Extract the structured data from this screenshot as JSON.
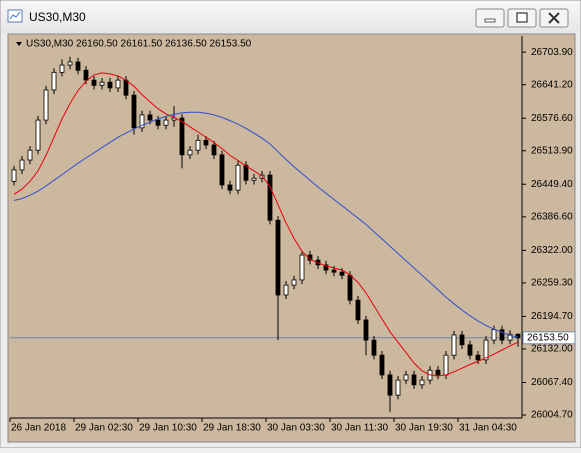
{
  "window": {
    "title": "US30,M30"
  },
  "chart_data": {
    "type": "candlestick",
    "info": "US30,M30 26160.50 26161.50 26136.50 26153.50",
    "open": [
      26455,
      26477,
      26496,
      26515,
      26573,
      26631,
      26665,
      26679,
      26685,
      26669,
      26650,
      26640,
      26646,
      26635,
      26650,
      26621,
      26558,
      26583,
      26573,
      26563,
      26573,
      26577,
      26506,
      26515,
      26534,
      26525,
      26506,
      26448,
      26438,
      26486,
      26457,
      26461,
      26467,
      26380,
      26236,
      26255,
      26265,
      26313,
      26303,
      26294,
      26284,
      26280,
      26274,
      26226,
      26188,
      26149,
      26120,
      26082,
      26043,
      26072,
      26082,
      26063,
      26072,
      26091,
      26082,
      26120,
      26159,
      26140,
      26120,
      26111,
      26149,
      26169,
      26149,
      26160.5
    ],
    "high": [
      26485,
      26504,
      26523,
      26581,
      26639,
      26673,
      26690,
      26695,
      26693,
      26677,
      26658,
      26654,
      26654,
      26658,
      26658,
      26629,
      26591,
      26591,
      26581,
      26581,
      26600,
      26585,
      26523,
      26545,
      26542,
      26533,
      26514,
      26456,
      26494,
      26494,
      26469,
      26475,
      26475,
      26388,
      26263,
      26273,
      26321,
      26321,
      26311,
      26302,
      26292,
      26288,
      26282,
      26234,
      26196,
      26157,
      26128,
      26090,
      26080,
      26090,
      26090,
      26080,
      26099,
      26099,
      26128,
      26167,
      26167,
      26148,
      26128,
      26157,
      26177,
      26177,
      26168,
      26161.5
    ],
    "low": [
      26447,
      26469,
      26488,
      26507,
      26565,
      26623,
      26657,
      26671,
      26661,
      26642,
      26632,
      26632,
      26627,
      26627,
      26613,
      26545,
      26550,
      26565,
      26555,
      26555,
      26560,
      26480,
      26498,
      26507,
      26517,
      26498,
      26440,
      26430,
      26430,
      26449,
      26449,
      26453,
      26372,
      26149,
      26228,
      26247,
      26257,
      26295,
      26286,
      26276,
      26272,
      26266,
      26218,
      26180,
      26120,
      26112,
      26074,
      26010,
      26035,
      26064,
      26055,
      26055,
      26064,
      26074,
      26074,
      26112,
      26132,
      26112,
      26103,
      26103,
      26141,
      26141,
      26141,
      26136.5
    ],
    "close": [
      26477,
      26496,
      26515,
      26573,
      26631,
      26665,
      26679,
      26685,
      26669,
      26650,
      26640,
      26646,
      26635,
      26650,
      26621,
      26558,
      26583,
      26573,
      26563,
      26573,
      26577,
      26506,
      26515,
      26534,
      26525,
      26506,
      26448,
      26438,
      26486,
      26457,
      26461,
      26467,
      26380,
      26236,
      26255,
      26265,
      26313,
      26303,
      26294,
      26284,
      26280,
      26274,
      26226,
      26188,
      26149,
      26120,
      26082,
      26043,
      26072,
      26082,
      26063,
      26072,
      26091,
      26082,
      26120,
      26159,
      26140,
      26120,
      26111,
      26149,
      26169,
      26149,
      26160.5,
      26153.5
    ],
    "lines": [
      {
        "color": "#e8000b",
        "values": [
          26430,
          26440,
          26455,
          26475,
          26505,
          26540,
          26575,
          26605,
          26630,
          26648,
          26660,
          26664,
          26662,
          26658,
          26650,
          26638,
          26622,
          26608,
          26595,
          26585,
          26578,
          26570,
          26560,
          26550,
          26540,
          26530,
          26518,
          26505,
          26495,
          26485,
          26475,
          26465,
          26445,
          26410,
          26375,
          26345,
          26320,
          26305,
          26298,
          26292,
          26288,
          26284,
          26275,
          26260,
          26240,
          26215,
          26190,
          26165,
          26145,
          26125,
          26105,
          26090,
          26082,
          26080,
          26082,
          26088,
          26095,
          26102,
          26108,
          26115,
          26122,
          26130,
          26138,
          26145
        ]
      },
      {
        "color": "#2f4fd0",
        "values": [
          26418,
          26422,
          26428,
          26436,
          26446,
          26457,
          26468,
          26479,
          26490,
          26500,
          26510,
          26520,
          26530,
          26540,
          26548,
          26556,
          26563,
          26569,
          26575,
          26580,
          26584,
          26587,
          26588,
          26588,
          26586,
          26583,
          26578,
          26572,
          26565,
          26557,
          26548,
          26538,
          26527,
          26512,
          26497,
          26483,
          26470,
          26457,
          26444,
          26432,
          26420,
          26408,
          26396,
          26384,
          26372,
          26358,
          26344,
          26330,
          26316,
          26302,
          26288,
          26274,
          26260,
          26246,
          26232,
          26219,
          26207,
          26196,
          26186,
          26177,
          26170,
          26164,
          26158,
          26155
        ]
      }
    ],
    "bid_line": {
      "value": 26153.5,
      "label": "26153.50"
    },
    "xlim": [
      -0.5,
      63.5
    ],
    "xticks": [
      {
        "value": 0,
        "label": "26 Jan 2018"
      },
      {
        "value": 8,
        "label": "29 Jan 02:30"
      },
      {
        "value": 16,
        "label": "29 Jan 10:30"
      },
      {
        "value": 24,
        "label": "29 Jan 18:30"
      },
      {
        "value": 32,
        "label": "30 Jan 03:30"
      },
      {
        "value": 40,
        "label": "30 Jan 11:30"
      },
      {
        "value": 48,
        "label": "30 Jan 19:30"
      },
      {
        "value": 56,
        "label": "31 Jan 04:30"
      }
    ],
    "ylim": [
      25999,
      26735
    ],
    "yticks": [
      {
        "value": 26004.7,
        "label": "26004.70"
      },
      {
        "value": 26067.4,
        "label": "26067.40"
      },
      {
        "value": 26132.0,
        "label": "26132.00"
      },
      {
        "value": 26194.7,
        "label": "26194.70"
      },
      {
        "value": 26259.3,
        "label": "26259.30"
      },
      {
        "value": 26322.0,
        "label": "26322.00"
      },
      {
        "value": 26386.6,
        "label": "26386.60"
      },
      {
        "value": 26449.4,
        "label": "26449.40"
      },
      {
        "value": 26513.9,
        "label": "26513.90"
      },
      {
        "value": 26576.6,
        "label": "26576.60"
      },
      {
        "value": 26641.2,
        "label": "26641.20"
      },
      {
        "value": 26703.9,
        "label": "26703.90"
      }
    ],
    "background": "#ccb89e",
    "bull_color": "#ffffff",
    "bear_color": "#000000"
  }
}
